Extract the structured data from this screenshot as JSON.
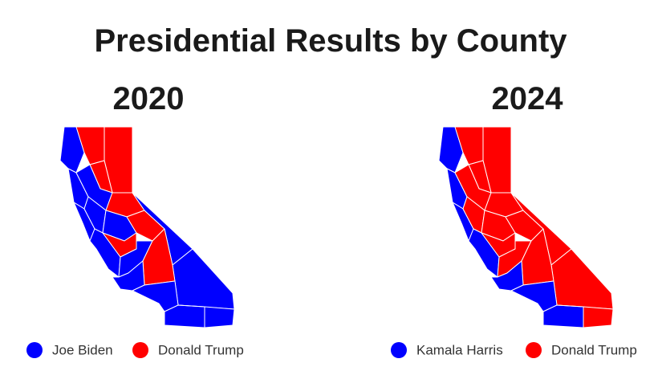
{
  "title": "Presidential Results by County",
  "panels": [
    {
      "year": "2020",
      "legend": [
        {
          "label": "Joe Biden",
          "color": "#0000ff"
        },
        {
          "label": "Donald Trump",
          "color": "#ff0000"
        }
      ]
    },
    {
      "year": "2024",
      "legend": [
        {
          "label": "Kamala Harris",
          "color": "#0000ff"
        },
        {
          "label": "Donald Trump",
          "color": "#ff0000"
        }
      ]
    }
  ]
}
